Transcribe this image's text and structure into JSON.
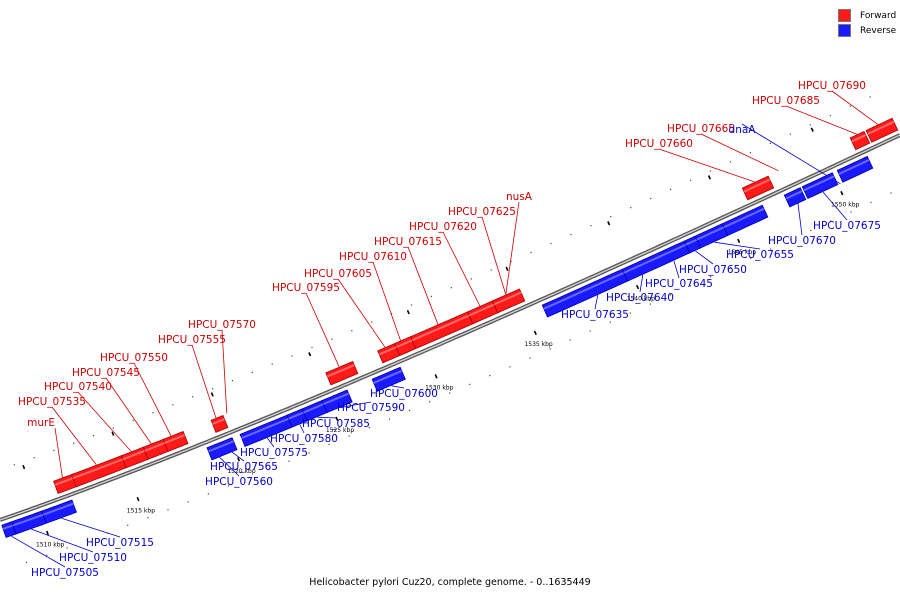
{
  "legend": {
    "forward_label": "Forward",
    "reverse_label": "Reverse",
    "forward_color": "#ff1a1a",
    "reverse_color": "#1a1aff"
  },
  "caption": "Helicobacter pylori Cuz20, complete genome. - 0..1635449",
  "scale": {
    "ticks": [
      "1510 kbp",
      "1515 kbp",
      "1520 kbp",
      "1525 kbp",
      "1530 kbp",
      "1535 kbp",
      "1540 kbp",
      "1545 kbp",
      "1550 kbp"
    ]
  },
  "colors": {
    "forward_text": "#cc0000",
    "reverse_text": "#0000cc",
    "backbone": "#888888"
  },
  "forward_genes": [
    "murE",
    "HPCU_07535",
    "HPCU_07540",
    "HPCU_07545",
    "HPCU_07550",
    "HPCU_07555",
    "HPCU_07570",
    "HPCU_07595",
    "HPCU_07605",
    "HPCU_07610",
    "HPCU_07615",
    "HPCU_07620",
    "HPCU_07625",
    "nusA",
    "HPCU_07660",
    "HPCU_07665",
    "HPCU_07685",
    "HPCU_07690"
  ],
  "reverse_genes": [
    "HPCU_07505",
    "HPCU_07510",
    "HPCU_07515",
    "HPCU_07560",
    "HPCU_07565",
    "HPCU_07575",
    "HPCU_07580",
    "HPCU_07585",
    "HPCU_07590",
    "HPCU_07600",
    "HPCU_07635",
    "HPCU_07640",
    "HPCU_07645",
    "HPCU_07650",
    "HPCU_07655",
    "HPCU_07670",
    "HPCU_07675",
    "dnaA"
  ]
}
